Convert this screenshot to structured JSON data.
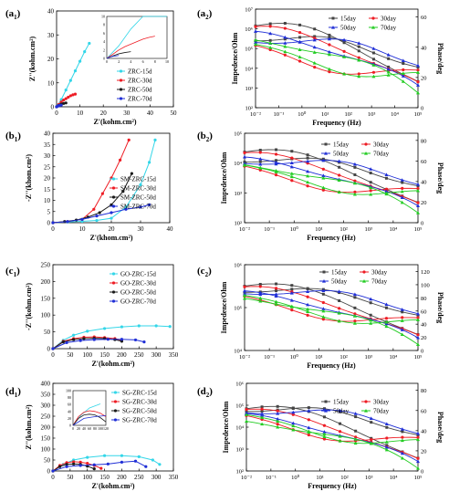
{
  "colors": {
    "cyan": "#33d6e8",
    "red": "#ee1c24",
    "black": "#1a1a1a",
    "blue": "#1f2ed6",
    "green": "#22cc22",
    "gray": "#444444"
  },
  "chart_data": [
    {
      "id": "a1",
      "panel_label": "a",
      "panel_sub": "1",
      "type": "scatter",
      "xlabel": "Z'(kohm.cm²)",
      "ylabel": "Z''(kohm.cm²)",
      "xticks": [
        "0",
        "10",
        "20",
        "30",
        "40",
        "50"
      ],
      "yticks": [
        "0",
        "10",
        "20",
        "30",
        "40"
      ],
      "xlim": [
        0,
        50
      ],
      "ylim": [
        0,
        40
      ],
      "legend_position": "center-right",
      "series": [
        {
          "name": "ZRC-15d",
          "color": "cyan",
          "x": [
            0,
            2,
            4,
            6,
            8,
            10,
            12,
            14
          ],
          "y": [
            0,
            3,
            7,
            11,
            15,
            19,
            23,
            26.5
          ]
        },
        {
          "name": "ZRC-30d",
          "color": "red",
          "x": [
            0,
            1,
            2,
            3,
            4,
            5,
            6,
            7,
            8
          ],
          "y": [
            0,
            1,
            2,
            2.8,
            3.4,
            4,
            4.6,
            5,
            5.3
          ]
        },
        {
          "name": "ZRC-50d",
          "color": "black",
          "x": [
            0,
            1,
            2,
            3,
            4
          ],
          "y": [
            0,
            0.6,
            1.1,
            1.4,
            1.6
          ]
        },
        {
          "name": "ZRC-70d",
          "color": "blue",
          "x": [
            0,
            0.5,
            1,
            1.5,
            2
          ],
          "y": [
            0,
            0.3,
            0.5,
            0.6,
            0.7
          ]
        }
      ],
      "inset": {
        "xticks": [
          "0",
          "2",
          "4",
          "6",
          "8",
          "10"
        ],
        "yticks": [
          "0",
          "2",
          "4",
          "6",
          "8",
          "10"
        ],
        "xlim": [
          0,
          10
        ],
        "ylim": [
          0,
          10
        ]
      }
    },
    {
      "id": "a2",
      "panel_label": "a",
      "panel_sub": "2",
      "type": "line",
      "xlabel": "Frequency (Hz)",
      "ylabel": "Impedence/Ohm",
      "y2label": "Phase/deg",
      "xticks": [
        "10⁻²",
        "10⁻¹",
        "10⁰",
        "10¹",
        "10²",
        "10³",
        "10⁴",
        "10⁵"
      ],
      "yticks": [
        "10²",
        "10³",
        "10⁴",
        "10⁵",
        "10⁶",
        "10⁷"
      ],
      "y2ticks": [
        "0",
        "20",
        "40",
        "60"
      ],
      "legend_position": "top-right",
      "series": [
        {
          "name": "15day",
          "color": "gray",
          "marker": "square"
        },
        {
          "name": "30day",
          "color": "red",
          "marker": "circle"
        },
        {
          "name": "50day",
          "color": "blue",
          "marker": "triangle"
        },
        {
          "name": "70day",
          "color": "green",
          "marker": "triangle"
        }
      ]
    },
    {
      "id": "b1",
      "panel_label": "b",
      "panel_sub": "1",
      "type": "scatter",
      "xlabel": "Z'(khom.cm²)",
      "ylabel": "-Z''(khom.cm²)",
      "xticks": [
        "0",
        "10",
        "20",
        "30",
        "40"
      ],
      "yticks": [
        "0",
        "5",
        "10",
        "15",
        "20",
        "25",
        "30",
        "35",
        "40"
      ],
      "xlim": [
        0,
        40
      ],
      "ylim": [
        0,
        40
      ],
      "legend_position": "center-right",
      "series": [
        {
          "name": "SM-ZRC-15d",
          "color": "cyan",
          "x": [
            0,
            5,
            10,
            15,
            20,
            25,
            30,
            33,
            35
          ],
          "y": [
            0,
            0.3,
            0.6,
            1,
            2,
            7,
            17,
            27,
            37
          ]
        },
        {
          "name": "SM-ZRC-30d",
          "color": "red",
          "x": [
            0,
            5,
            10,
            14,
            17,
            20,
            23,
            26
          ],
          "y": [
            0,
            0.5,
            1.5,
            6,
            13,
            20,
            28,
            37
          ]
        },
        {
          "name": "SM-ZRC-50d",
          "color": "black",
          "x": [
            0,
            4,
            8,
            12,
            16,
            20,
            24,
            27
          ],
          "y": [
            0,
            0.5,
            1.2,
            2.5,
            4.5,
            8,
            14,
            22
          ]
        },
        {
          "name": "SM-ZRC-70d",
          "color": "blue",
          "x": [
            0,
            5,
            10,
            15,
            20,
            25,
            30,
            33
          ],
          "y": [
            0,
            0.5,
            1.5,
            3,
            4.5,
            6,
            7,
            8
          ]
        }
      ]
    },
    {
      "id": "b2",
      "panel_label": "b",
      "panel_sub": "2",
      "type": "line",
      "xlabel": "Frequency (Hz)",
      "ylabel": "Impedence/Ohm",
      "y2label": "Phase/deg",
      "xticks": [
        "10⁻²",
        "10⁻¹",
        "10⁰",
        "10¹",
        "10²",
        "10³",
        "10⁴",
        "10⁵"
      ],
      "yticks": [
        "10²",
        "10³",
        "10⁴",
        "10⁵"
      ],
      "y2ticks": [
        "0",
        "20",
        "40",
        "60",
        "80"
      ],
      "legend_position": "top-right",
      "series": [
        {
          "name": "15day",
          "color": "gray",
          "marker": "square"
        },
        {
          "name": "30day",
          "color": "red",
          "marker": "circle"
        },
        {
          "name": "50day",
          "color": "blue",
          "marker": "triangle"
        },
        {
          "name": "70day",
          "color": "green",
          "marker": "triangle"
        }
      ]
    },
    {
      "id": "c1",
      "panel_label": "c",
      "panel_sub": "1",
      "type": "scatter",
      "xlabel": "Z'(kohm.cm²)",
      "ylabel": "-Z''(kohm.cm²)",
      "xticks": [
        "0",
        "50",
        "100",
        "150",
        "200",
        "250",
        "300",
        "350"
      ],
      "yticks": [
        "0",
        "50",
        "100",
        "150",
        "200",
        "250"
      ],
      "xlim": [
        0,
        350
      ],
      "ylim": [
        0,
        250
      ],
      "legend_position": "top-right",
      "series": [
        {
          "name": "GO-ZRC-15d",
          "color": "cyan",
          "x": [
            0,
            30,
            60,
            100,
            150,
            200,
            250,
            300,
            340
          ],
          "y": [
            0,
            25,
            40,
            52,
            60,
            65,
            68,
            68,
            66
          ]
        },
        {
          "name": "GO-ZRC-30d",
          "color": "red",
          "x": [
            0,
            30,
            60,
            90,
            120,
            150,
            180,
            200
          ],
          "y": [
            0,
            22,
            30,
            34,
            35,
            33,
            30,
            25
          ]
        },
        {
          "name": "GO-ZRC-50d",
          "color": "black",
          "x": [
            0,
            30,
            60,
            90,
            120,
            150,
            180,
            200
          ],
          "y": [
            0,
            20,
            27,
            30,
            31,
            30,
            27,
            22
          ]
        },
        {
          "name": "GO-ZRC-70d",
          "color": "blue",
          "x": [
            0,
            40,
            80,
            120,
            160,
            200,
            240,
            265
          ],
          "y": [
            0,
            18,
            24,
            27,
            28,
            28,
            26,
            20
          ]
        }
      ]
    },
    {
      "id": "c2",
      "panel_label": "c",
      "panel_sub": "2",
      "type": "line",
      "xlabel": "Frequency (Hz)",
      "ylabel": "Impedence/Ohm",
      "y2label": "Phase/deg",
      "xticks": [
        "10⁻²",
        "10⁻¹",
        "10⁰",
        "10¹",
        "10²",
        "10³",
        "10⁴",
        "10⁵"
      ],
      "yticks": [
        "10⁴",
        "10⁵",
        "10⁶"
      ],
      "y2ticks": [
        "0",
        "20",
        "40",
        "60",
        "80",
        "100",
        "120"
      ],
      "legend_position": "top-right",
      "series": [
        {
          "name": "15day",
          "color": "gray",
          "marker": "square"
        },
        {
          "name": "30day",
          "color": "red",
          "marker": "circle"
        },
        {
          "name": "50day",
          "color": "blue",
          "marker": "triangle"
        },
        {
          "name": "70day",
          "color": "green",
          "marker": "triangle"
        }
      ]
    },
    {
      "id": "d1",
      "panel_label": "d",
      "panel_sub": "1",
      "type": "scatter",
      "xlabel": "Z'(kohm.cm²)",
      "ylabel": "Z''(kohm.cm²)",
      "xticks": [
        "0",
        "50",
        "100",
        "150",
        "200",
        "250",
        "300",
        "350"
      ],
      "yticks": [
        "0",
        "50",
        "100",
        "150",
        "200",
        "250",
        "300",
        "350",
        "400"
      ],
      "xlim": [
        0,
        350
      ],
      "ylim": [
        0,
        400
      ],
      "legend_position": "top-right",
      "series": [
        {
          "name": "SG-ZRC-15d",
          "color": "cyan",
          "x": [
            0,
            30,
            60,
            100,
            150,
            200,
            250,
            290,
            310
          ],
          "y": [
            0,
            30,
            50,
            62,
            70,
            70,
            65,
            50,
            30
          ]
        },
        {
          "name": "SG-ZRC-30d",
          "color": "red",
          "x": [
            0,
            20,
            40,
            60,
            80,
            100,
            120,
            140
          ],
          "y": [
            0,
            25,
            38,
            42,
            40,
            35,
            25,
            12
          ]
        },
        {
          "name": "SG-ZRC-50d",
          "color": "black",
          "x": [
            0,
            20,
            40,
            60,
            80,
            100,
            120
          ],
          "y": [
            0,
            20,
            30,
            32,
            30,
            22,
            10
          ]
        },
        {
          "name": "SG-ZRC-70d",
          "color": "blue",
          "x": [
            0,
            40,
            80,
            120,
            160,
            200,
            240,
            270
          ],
          "y": [
            0,
            20,
            25,
            28,
            32,
            40,
            45,
            20
          ]
        }
      ],
      "inset": {
        "xticks": [
          "0",
          "20",
          "40",
          "60",
          "80",
          "100",
          "120"
        ],
        "yticks": [
          "0",
          "20",
          "40",
          "60",
          "80",
          "100"
        ],
        "xlim": [
          0,
          120
        ],
        "ylim": [
          0,
          100
        ]
      }
    },
    {
      "id": "d2",
      "panel_label": "d",
      "panel_sub": "2",
      "type": "line",
      "xlabel": "Frequency (Hz)",
      "ylabel": "Impedence/Ohm",
      "y2label": "Phase/deg",
      "xticks": [
        "10⁻²",
        "10⁻¹",
        "10⁰",
        "10¹",
        "10²",
        "10³",
        "10⁴",
        "10⁵"
      ],
      "yticks": [
        "10²",
        "10³",
        "10⁴",
        "10⁵",
        "10⁶"
      ],
      "y2ticks": [
        "0",
        "20",
        "40",
        "60",
        "80"
      ],
      "legend_position": "top-right",
      "series": [
        {
          "name": "15day",
          "color": "gray",
          "marker": "square"
        },
        {
          "name": "30day",
          "color": "red",
          "marker": "circle"
        },
        {
          "name": "50day",
          "color": "blue",
          "marker": "triangle"
        },
        {
          "name": "70day",
          "color": "green",
          "marker": "triangle"
        }
      ]
    }
  ]
}
